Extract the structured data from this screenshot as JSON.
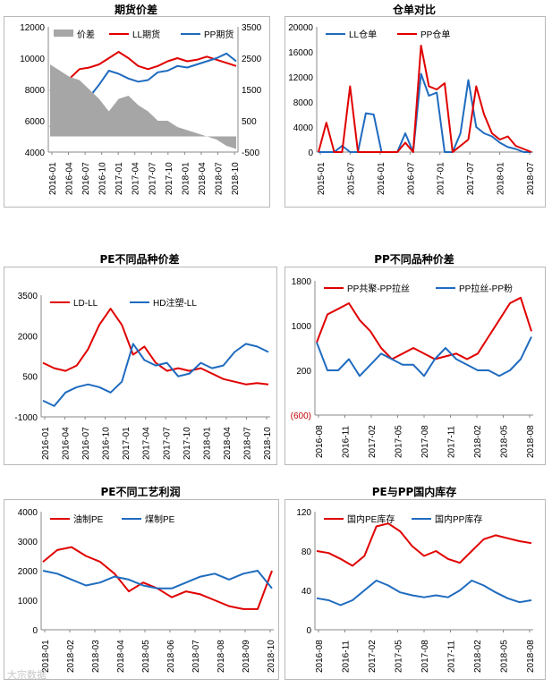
{
  "watermark": "大宗数据",
  "chart_data": [
    {
      "type": "line",
      "title": "期货价差",
      "legend": [
        "价差",
        "LL期货",
        "PP期货"
      ],
      "x_ticks": [
        "2016-01",
        "2016-04",
        "2016-07",
        "2016-10",
        "2017-01",
        "2017-04",
        "2017-07",
        "2017-10",
        "2018-01",
        "2018-04",
        "2018-07",
        "2018-10"
      ],
      "y_left_ticks": [
        "12000",
        "10000",
        "8000",
        "6000",
        "4000"
      ],
      "y_right_ticks": [
        "3500",
        "2500",
        "1500",
        "500",
        "-500"
      ],
      "ylim_left": [
        4000,
        12000
      ],
      "ylim_right": [
        -500,
        3500
      ],
      "colors": {
        "spread": "#a6a6a6",
        "LL期货": "#e00000",
        "PP期货": "#1f6bbf"
      },
      "series": [
        {
          "name": "LL期货",
          "axis": "left",
          "values": [
            7900,
            8300,
            8700,
            9300,
            9400,
            9600,
            10000,
            10400,
            10000,
            9500,
            9300,
            9500,
            9800,
            10000,
            9800,
            9900,
            10100,
            9900,
            9700,
            9500
          ]
        },
        {
          "name": "PP期货",
          "axis": "left",
          "values": [
            5600,
            6200,
            6500,
            7000,
            7500,
            8300,
            9200,
            9000,
            8700,
            8500,
            8600,
            9100,
            9200,
            9500,
            9400,
            9600,
            9800,
            10000,
            10300,
            9800
          ]
        },
        {
          "name": "价差",
          "axis": "right",
          "values": [
            2300,
            2100,
            1900,
            1800,
            1500,
            1200,
            800,
            1200,
            1300,
            1000,
            800,
            500,
            500,
            300,
            200,
            100,
            0,
            -100,
            -300,
            -400
          ]
        }
      ]
    },
    {
      "type": "line",
      "title": "仓单对比",
      "legend": [
        "LL仓单",
        "PP仓单"
      ],
      "x_ticks": [
        "2015-01",
        "2015-07",
        "2016-01",
        "2016-07",
        "2017-01",
        "2017-07",
        "2018-01",
        "2018-07"
      ],
      "y_ticks": [
        "20000",
        "16000",
        "12000",
        "8000",
        "4000",
        "0"
      ],
      "ylim": [
        0,
        20000
      ],
      "colors": {
        "LL仓单": "#1f6bbf",
        "PP仓单": "#e00000"
      },
      "series": [
        {
          "name": "LL仓单",
          "values": [
            0,
            0,
            0,
            1000,
            0,
            0,
            6200,
            6000,
            0,
            0,
            0,
            3000,
            0,
            12500,
            9000,
            9500,
            0,
            0,
            3000,
            11500,
            4000,
            3000,
            2500,
            1500,
            800,
            500,
            0,
            0
          ]
        },
        {
          "name": "PP仓单",
          "values": [
            0,
            4700,
            0,
            0,
            10500,
            0,
            0,
            0,
            0,
            0,
            0,
            1500,
            0,
            17000,
            10500,
            10000,
            11000,
            0,
            1000,
            2000,
            10500,
            6000,
            3000,
            2000,
            2500,
            1000,
            500,
            0
          ]
        }
      ]
    },
    {
      "type": "line",
      "title": "PE不同品种价差",
      "legend": [
        "LD-LL",
        "HD注塑-LL"
      ],
      "x_ticks": [
        "2016-01",
        "2016-04",
        "2016-07",
        "2016-10",
        "2017-01",
        "2017-04",
        "2017-07",
        "2017-10",
        "2018-01",
        "2018-04",
        "2018-07",
        "2018-10"
      ],
      "y_ticks": [
        "3500",
        "2000",
        "500",
        "-1000"
      ],
      "ylim": [
        -1000,
        3500
      ],
      "colors": {
        "LD-LL": "#e00000",
        "HD注塑-LL": "#1f6bbf"
      },
      "series": [
        {
          "name": "LD-LL",
          "values": [
            1000,
            800,
            700,
            900,
            1500,
            2400,
            3000,
            2400,
            1300,
            1600,
            1000,
            700,
            800,
            700,
            800,
            600,
            400,
            300,
            200,
            250,
            200
          ]
        },
        {
          "name": "HD注塑-LL",
          "values": [
            -400,
            -600,
            -100,
            100,
            200,
            100,
            -100,
            300,
            1700,
            1100,
            900,
            1000,
            500,
            600,
            1000,
            800,
            900,
            1400,
            1700,
            1600,
            1400
          ]
        }
      ]
    },
    {
      "type": "line",
      "title": "PP不同品种价差",
      "legend": [
        "PP共聚-PP拉丝",
        "PP拉丝-PP粉"
      ],
      "x_ticks": [
        "2016-08",
        "2016-11",
        "2017-02",
        "2017-05",
        "2017-08",
        "2017-11",
        "2018-02",
        "2018-05",
        "2018-08"
      ],
      "y_ticks": [
        "1800",
        "1000",
        "200",
        "(600)"
      ],
      "ylim": [
        -600,
        1800
      ],
      "colors": {
        "PP共聚-PP拉丝": "#e00000",
        "PP拉丝-PP粉": "#1f6bbf"
      },
      "series": [
        {
          "name": "PP共聚-PP拉丝",
          "values": [
            700,
            1200,
            1300,
            1400,
            1100,
            900,
            600,
            400,
            500,
            600,
            500,
            400,
            450,
            500,
            400,
            500,
            800,
            1100,
            1400,
            1500,
            900
          ]
        },
        {
          "name": "PP拉丝-PP粉",
          "values": [
            700,
            200,
            200,
            400,
            100,
            300,
            500,
            400,
            300,
            300,
            100,
            400,
            600,
            400,
            300,
            200,
            200,
            100,
            200,
            400,
            800
          ]
        }
      ]
    },
    {
      "type": "line",
      "title": "PE不同工艺利润",
      "legend": [
        "油制PE",
        "煤制PE"
      ],
      "x_ticks": [
        "2018-01",
        "2018-02",
        "2018-03",
        "2018-04",
        "2018-05",
        "2018-06",
        "2018-07",
        "2018-08",
        "2018-09",
        "2018-10"
      ],
      "y_ticks": [
        "4000",
        "3000",
        "2000",
        "1000",
        "0"
      ],
      "ylim": [
        0,
        4000
      ],
      "colors": {
        "油制PE": "#e00000",
        "煤制PE": "#1f6bbf"
      },
      "series": [
        {
          "name": "油制PE",
          "values": [
            2300,
            2700,
            2800,
            2500,
            2300,
            1900,
            1300,
            1600,
            1400,
            1100,
            1300,
            1200,
            1000,
            800,
            700,
            700,
            2000
          ]
        },
        {
          "name": "煤制PE",
          "values": [
            2000,
            1900,
            1700,
            1500,
            1600,
            1800,
            1700,
            1500,
            1400,
            1400,
            1600,
            1800,
            1900,
            1700,
            1900,
            2000,
            1400
          ]
        }
      ]
    },
    {
      "type": "line",
      "title": "PE与PP国内库存",
      "legend": [
        "国内PE库存",
        "国内PP库存"
      ],
      "x_ticks": [
        "2016-08",
        "2016-11",
        "2017-02",
        "2017-05",
        "2017-08",
        "2017-11",
        "2018-02",
        "2018-05",
        "2018-08"
      ],
      "y_ticks": [
        "120",
        "80",
        "40",
        "0"
      ],
      "ylim": [
        0,
        120
      ],
      "colors": {
        "国内PE库存": "#e00000",
        "国内PP库存": "#1f6bbf"
      },
      "series": [
        {
          "name": "国内PE库存",
          "values": [
            80,
            78,
            72,
            65,
            75,
            105,
            108,
            100,
            85,
            75,
            80,
            72,
            68,
            80,
            92,
            96,
            93,
            90,
            88
          ]
        },
        {
          "name": "国内PP库存",
          "values": [
            32,
            30,
            25,
            30,
            40,
            50,
            45,
            38,
            35,
            33,
            35,
            33,
            40,
            50,
            45,
            38,
            32,
            28,
            30
          ]
        }
      ]
    }
  ]
}
